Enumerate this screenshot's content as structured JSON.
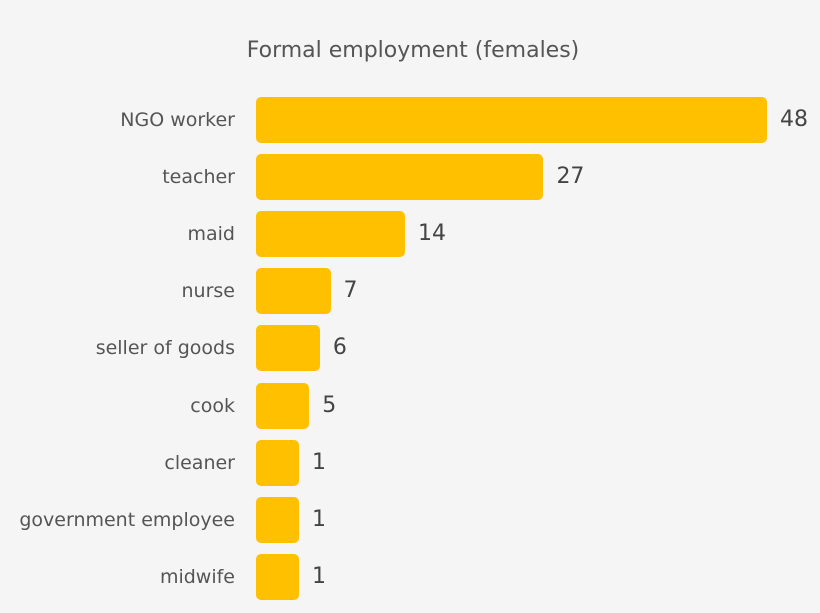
{
  "chart_data": {
    "type": "bar",
    "orientation": "horizontal",
    "title": "Formal employment (females)",
    "categories": [
      "NGO worker",
      "teacher",
      "maid",
      "nurse",
      "seller of goods",
      "cook",
      "cleaner",
      "government employee",
      "midwife"
    ],
    "values": [
      48,
      27,
      14,
      7,
      6,
      5,
      1,
      1,
      1
    ],
    "xlabel": "",
    "ylabel": "",
    "grid": false,
    "legend": null,
    "bar_color": "#ffc000",
    "data_labels": true
  },
  "labels": {
    "title": "Formal employment (females)",
    "rows": [
      {
        "label": "NGO worker",
        "value": "48"
      },
      {
        "label": "teacher",
        "value": "27"
      },
      {
        "label": "maid",
        "value": "14"
      },
      {
        "label": "nurse",
        "value": "7"
      },
      {
        "label": "seller of goods",
        "value": "6"
      },
      {
        "label": "cook",
        "value": "5"
      },
      {
        "label": "cleaner",
        "value": "1"
      },
      {
        "label": "government employee",
        "value": "1"
      },
      {
        "label": "midwife",
        "value": "1"
      }
    ]
  }
}
